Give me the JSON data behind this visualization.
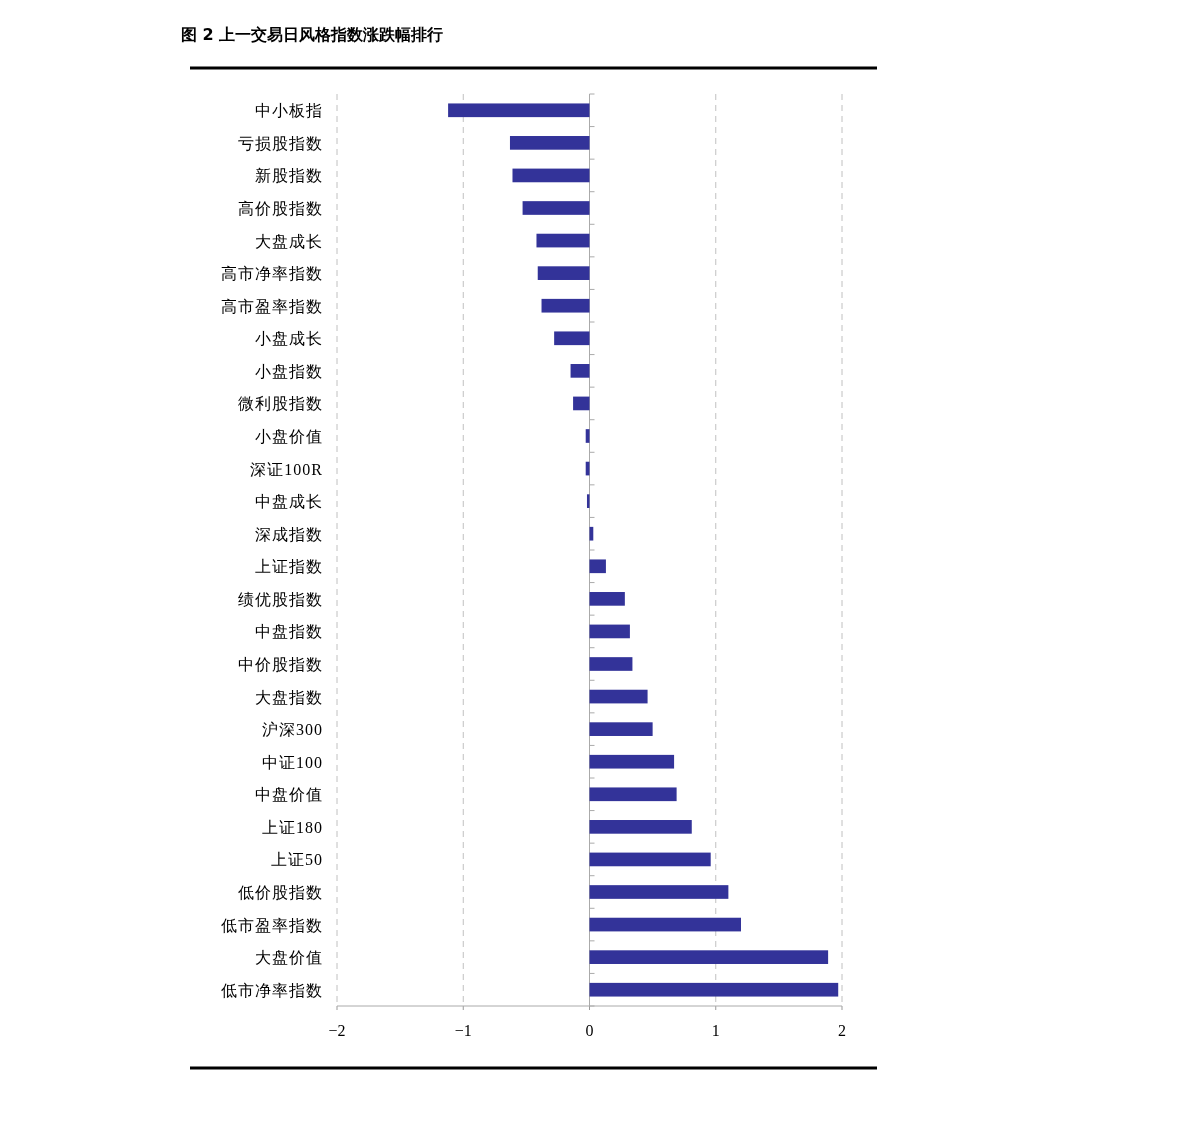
{
  "chart_data": {
    "type": "bar",
    "orientation": "horizontal",
    "title": "图 2 上一交易日风格指数涨跌幅排行",
    "categories": [
      "中小板指",
      "亏损股指数",
      "新股指数",
      "高价股指数",
      "大盘成长",
      "高市净率指数",
      "高市盈率指数",
      "小盘成长",
      "小盘指数",
      "微利股指数",
      "小盘价值",
      "深证100R",
      "中盘成长",
      "深成指数",
      "上证指数",
      "绩优股指数",
      "中盘指数",
      "中价股指数",
      "大盘指数",
      "沪深300",
      "中证100",
      "中盘价值",
      "上证180",
      "上证50",
      "低价股指数",
      "低市盈率指数",
      "大盘价值",
      "低市净率指数"
    ],
    "values": [
      -1.12,
      -0.63,
      -0.61,
      -0.53,
      -0.42,
      -0.41,
      -0.38,
      -0.28,
      -0.15,
      -0.13,
      -0.03,
      -0.03,
      -0.02,
      0.03,
      0.13,
      0.28,
      0.32,
      0.34,
      0.46,
      0.5,
      0.67,
      0.69,
      0.81,
      0.96,
      1.1,
      1.2,
      1.89,
      1.97
    ],
    "color": "#333399",
    "xlim": [
      -2,
      2
    ],
    "xticks": [
      -2,
      -1,
      0,
      1,
      2
    ],
    "grid": "x"
  }
}
